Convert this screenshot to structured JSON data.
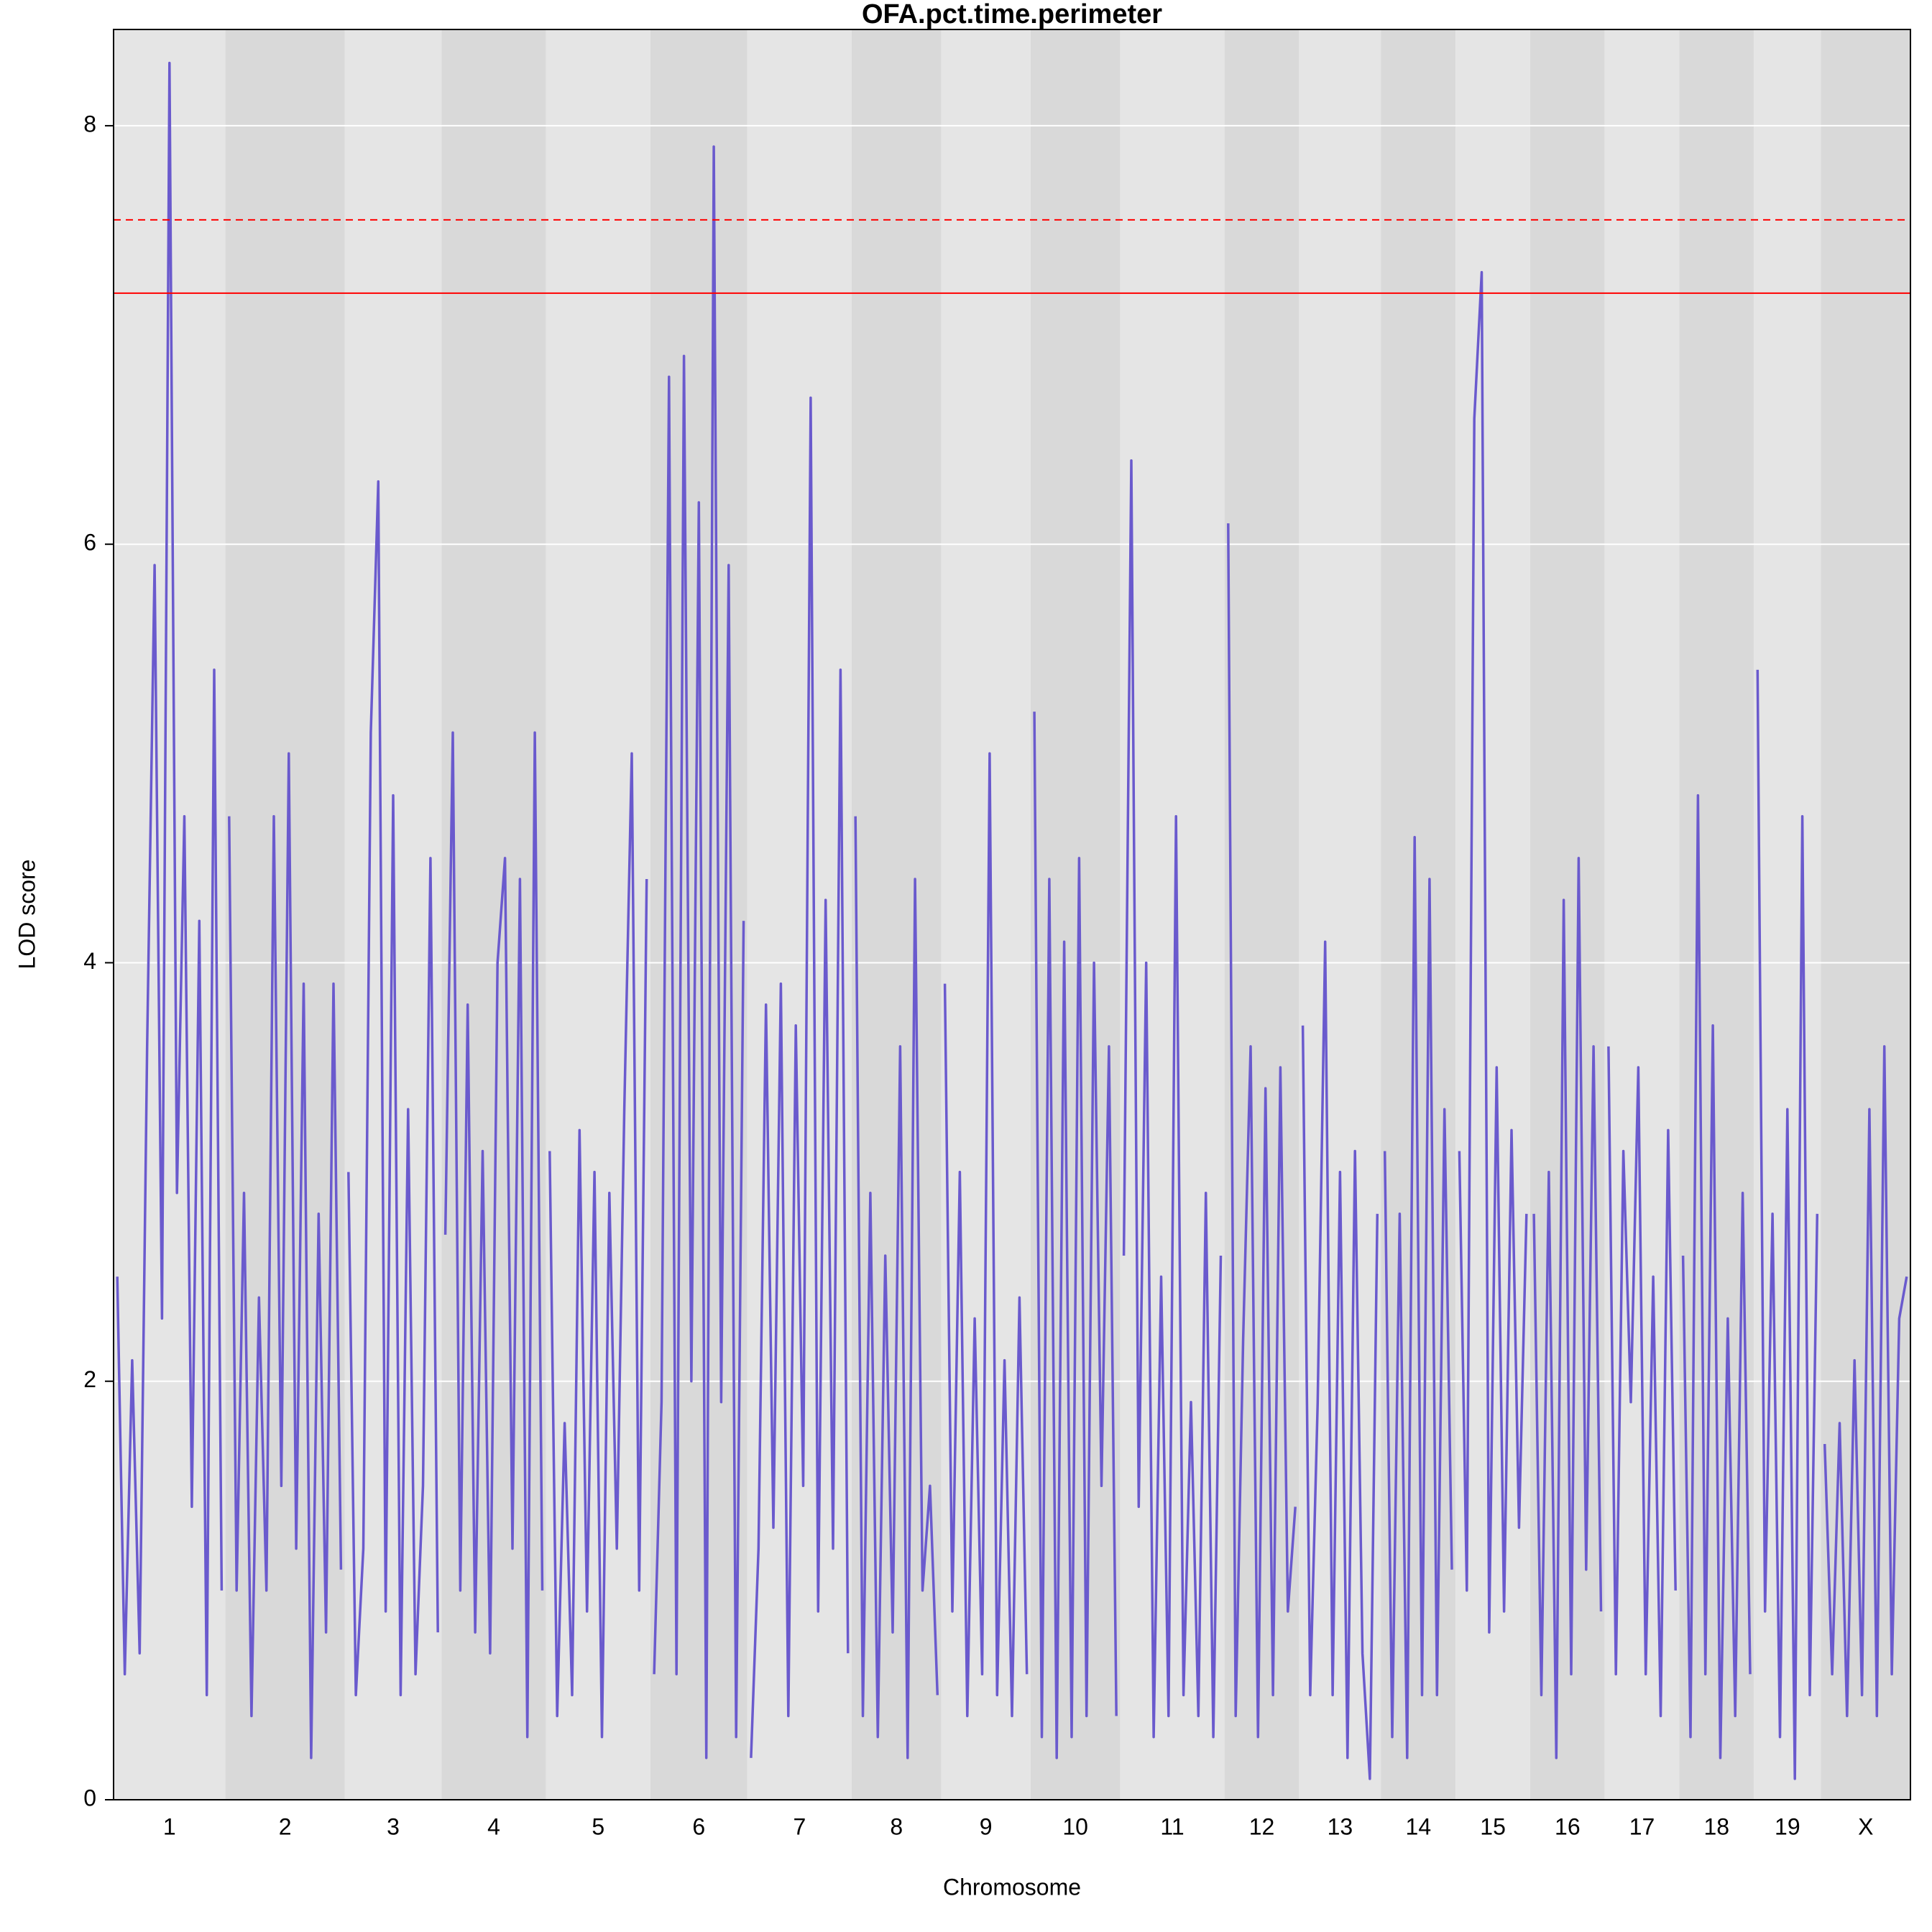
{
  "chart_data": {
    "type": "line",
    "title": "OFA.pct.time.perimeter",
    "x_label": "Chromosome",
    "y_label": "LOD score",
    "color": "#6a5acd",
    "band_colors": [
      "#e5e5e5",
      "#d9d9d9"
    ],
    "grid": true,
    "ylim": [
      0,
      8.46
    ],
    "yticks": [
      0,
      2,
      4,
      6,
      8
    ],
    "threshold_color": "#ff0000",
    "thresholds": [
      {
        "value": 7.2,
        "dashed": false
      },
      {
        "value": 7.55,
        "dashed": true
      }
    ],
    "chromosomes": [
      {
        "label": "1",
        "values": [
          2.5,
          0.6,
          2.1,
          0.7,
          3.6,
          5.9,
          2.3,
          8.3,
          2.9,
          4.7,
          1.4,
          4.2,
          0.5,
          5.4,
          1.0
        ]
      },
      {
        "label": "2",
        "values": [
          4.7,
          1.0,
          2.9,
          0.4,
          2.4,
          1.0,
          4.7,
          1.5,
          5.0,
          1.2,
          3.9,
          0.2,
          2.8,
          0.8,
          3.9,
          1.1
        ]
      },
      {
        "label": "3",
        "values": [
          3.0,
          0.5,
          1.2,
          5.1,
          6.3,
          0.9,
          4.8,
          0.5,
          3.3,
          0.6,
          1.5,
          4.5,
          0.8
        ]
      },
      {
        "label": "4",
        "values": [
          2.7,
          5.1,
          1.0,
          3.8,
          0.8,
          3.1,
          0.7,
          4.0,
          4.5,
          1.2,
          4.4,
          0.3,
          5.1,
          1.0
        ]
      },
      {
        "label": "5",
        "values": [
          3.1,
          0.4,
          1.8,
          0.5,
          3.2,
          0.9,
          3.0,
          0.3,
          2.9,
          1.2,
          3.3,
          5.0,
          1.0,
          4.4
        ]
      },
      {
        "label": "6",
        "values": [
          0.6,
          1.9,
          6.8,
          0.6,
          6.9,
          2.0,
          6.2,
          0.2,
          7.9,
          1.9,
          5.9,
          0.3,
          4.2
        ]
      },
      {
        "label": "7",
        "values": [
          0.2,
          1.2,
          3.8,
          1.3,
          3.9,
          0.4,
          3.7,
          1.5,
          6.7,
          0.9,
          4.3,
          1.2,
          5.4,
          0.7
        ]
      },
      {
        "label": "8",
        "values": [
          4.7,
          0.4,
          2.9,
          0.3,
          2.6,
          0.8,
          3.6,
          0.2,
          4.4,
          1.0,
          1.5,
          0.5
        ]
      },
      {
        "label": "9",
        "values": [
          3.9,
          0.9,
          3.0,
          0.4,
          2.3,
          0.6,
          5.0,
          0.5,
          2.1,
          0.4,
          2.4,
          0.6
        ]
      },
      {
        "label": "10",
        "values": [
          5.2,
          0.3,
          4.4,
          0.2,
          4.1,
          0.3,
          4.5,
          0.4,
          4.0,
          1.5,
          3.6,
          0.4
        ]
      },
      {
        "label": "11",
        "values": [
          2.6,
          6.4,
          1.4,
          4.0,
          0.3,
          2.5,
          0.4,
          4.7,
          0.5,
          1.9,
          0.4,
          2.9,
          0.3,
          2.6
        ]
      },
      {
        "label": "12",
        "values": [
          6.1,
          0.4,
          2.2,
          3.6,
          0.3,
          3.4,
          0.5,
          3.5,
          0.9,
          1.4
        ]
      },
      {
        "label": "13",
        "values": [
          3.7,
          0.5,
          1.9,
          4.1,
          0.5,
          3.0,
          0.2,
          3.1,
          0.7,
          0.1,
          2.8
        ]
      },
      {
        "label": "14",
        "values": [
          3.1,
          0.3,
          2.8,
          0.2,
          4.6,
          0.5,
          4.4,
          0.5,
          3.3,
          1.1
        ]
      },
      {
        "label": "15",
        "values": [
          3.1,
          1.0,
          6.6,
          7.3,
          0.8,
          3.5,
          0.9,
          3.2,
          1.3,
          2.8
        ]
      },
      {
        "label": "16",
        "values": [
          2.8,
          0.5,
          3.0,
          0.2,
          4.3,
          0.6,
          4.5,
          1.1,
          3.6,
          0.9
        ]
      },
      {
        "label": "17",
        "values": [
          3.6,
          0.6,
          3.1,
          1.9,
          3.5,
          0.6,
          2.5,
          0.4,
          3.2,
          1.0
        ]
      },
      {
        "label": "18",
        "values": [
          2.6,
          0.3,
          4.8,
          0.6,
          3.7,
          0.2,
          2.3,
          0.4,
          2.9,
          0.6
        ]
      },
      {
        "label": "19",
        "values": [
          5.4,
          0.9,
          2.8,
          0.3,
          3.3,
          0.1,
          4.7,
          0.5,
          2.8
        ]
      },
      {
        "label": "X",
        "values": [
          1.7,
          0.6,
          1.8,
          0.4,
          2.1,
          0.5,
          3.3,
          0.4,
          3.6,
          0.6,
          2.3,
          2.5
        ]
      }
    ]
  }
}
